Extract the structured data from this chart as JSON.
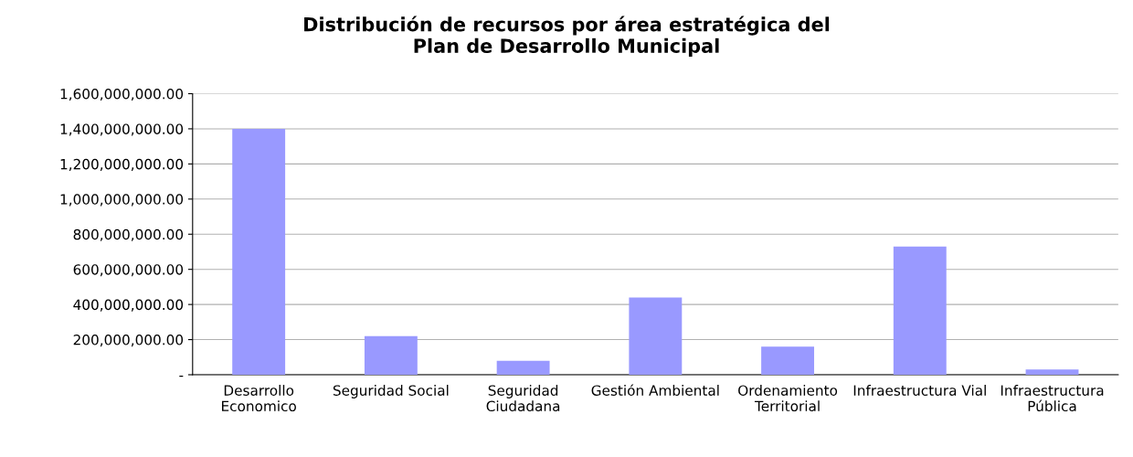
{
  "chart_data": {
    "type": "bar",
    "title": "Distribución de recursos por área estratégica del\nPlan de Desarrollo Municipal",
    "categories": [
      "Desarrollo\nEconomico",
      "Seguridad Social",
      "Seguridad\nCiudadana",
      "Gestión Ambiental",
      "Ordenamiento\nTerritorial",
      "Infraestructura Vial",
      "Infraestructura\nPública"
    ],
    "values": [
      1400000000,
      220000000,
      80000000,
      440000000,
      160000000,
      730000000,
      30000000
    ],
    "color": "#9999ff",
    "ylim": [
      0,
      1600000000
    ],
    "yticks": [
      {
        "value": 0,
        "label": "-"
      },
      {
        "value": 200000000,
        "label": "200,000,000.00"
      },
      {
        "value": 400000000,
        "label": "400,000,000.00"
      },
      {
        "value": 600000000,
        "label": "600,000,000.00"
      },
      {
        "value": 800000000,
        "label": "800,000,000.00"
      },
      {
        "value": 1000000000,
        "label": "1,000,000,000.00"
      },
      {
        "value": 1200000000,
        "label": "1,200,000,000.00"
      },
      {
        "value": 1400000000,
        "label": "1,400,000,000.00"
      },
      {
        "value": 1600000000,
        "label": "1,600,000,000.00"
      }
    ],
    "grid": "y",
    "legend": false
  }
}
